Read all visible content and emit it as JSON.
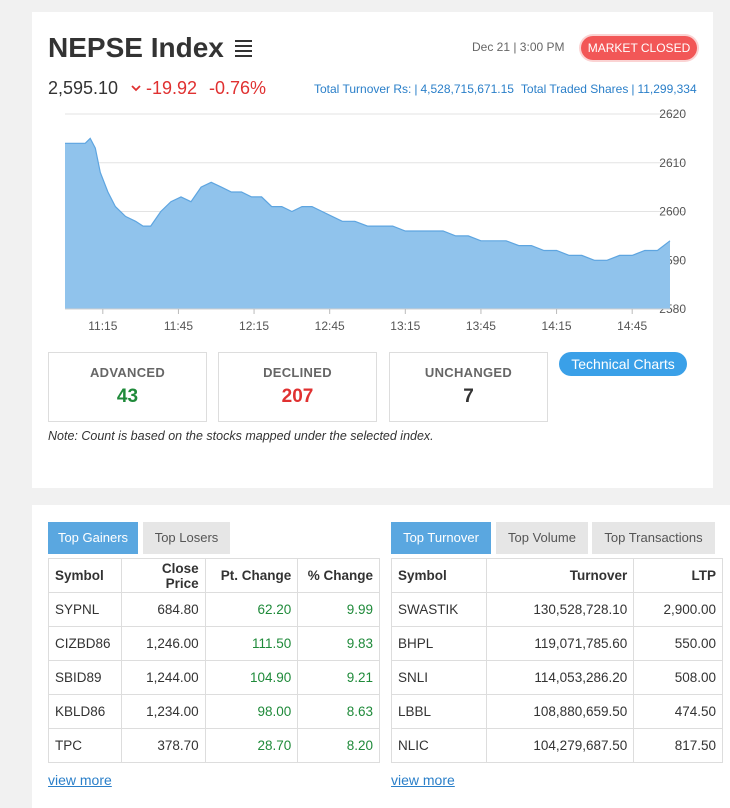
{
  "header": {
    "title": "NEPSE Index",
    "datetime": "Dec 21 | 3:00 PM",
    "market_status": "MARKET CLOSED"
  },
  "index": {
    "value": "2,595.10",
    "point_change": "-19.92",
    "percent_change": "-0.76%"
  },
  "turnover": {
    "turnover_label": "Total Turnover Rs:",
    "turnover_value": "4,528,715,671.15",
    "shares_label": "Total Traded Shares",
    "shares_value": "11,299,334"
  },
  "chart_data": {
    "type": "area",
    "x_ticks": [
      "11:15",
      "11:45",
      "12:15",
      "12:45",
      "13:15",
      "13:45",
      "14:15",
      "14:45"
    ],
    "y_ticks": [
      2620,
      2610,
      2600,
      2590,
      2580
    ],
    "ylim": [
      2580,
      2620
    ],
    "color": "#90c3ec",
    "line_color": "#5ea5e0",
    "series": [
      {
        "x": [
          "11:00",
          "11:04",
          "11:08",
          "11:10",
          "11:12",
          "11:14",
          "11:17",
          "11:20",
          "11:24",
          "11:28",
          "11:31",
          "11:34",
          "11:38",
          "11:42",
          "11:46",
          "11:50",
          "11:54",
          "11:58",
          "12:02",
          "12:06",
          "12:10",
          "12:14",
          "12:18",
          "12:22",
          "12:26",
          "12:30",
          "12:34",
          "12:38",
          "12:42",
          "12:46",
          "12:50",
          "12:55",
          "13:00",
          "13:05",
          "13:10",
          "13:15",
          "13:20",
          "13:25",
          "13:30",
          "13:35",
          "13:40",
          "13:45",
          "13:50",
          "13:55",
          "14:00",
          "14:05",
          "14:10",
          "14:15",
          "14:20",
          "14:25",
          "14:30",
          "14:35",
          "14:40",
          "14:45",
          "14:50",
          "14:55",
          "15:00"
        ],
        "values": [
          2614,
          2614,
          2614,
          2615,
          2613,
          2608,
          2604,
          2601,
          2599,
          2598,
          2597,
          2597,
          2600,
          2602,
          2603,
          2602,
          2605,
          2606,
          2605,
          2604,
          2604,
          2603,
          2603,
          2601,
          2601,
          2600,
          2601,
          2601,
          2600,
          2599,
          2598,
          2598,
          2597,
          2597,
          2597,
          2596,
          2596,
          2596,
          2596,
          2595,
          2595,
          2594,
          2594,
          2594,
          2593,
          2593,
          2592,
          2592,
          2591,
          2591,
          2590,
          2590,
          2591,
          2591,
          2592,
          2592,
          2594
        ]
      }
    ]
  },
  "stats": {
    "advanced_label": "ADVANCED",
    "advanced_value": "43",
    "declined_label": "DECLINED",
    "declined_value": "207",
    "unchanged_label": "UNCHANGED",
    "unchanged_value": "7"
  },
  "colors": {
    "advanced": "#1f8a3a",
    "declined": "#e03131",
    "unchanged": "#333333"
  },
  "technical_charts_label": "Technical Charts",
  "note": "Note: Count is based on the stocks mapped under the selected index.",
  "gainers_panel": {
    "tabs": [
      "Top Gainers",
      "Top Losers"
    ],
    "headers": [
      "Symbol",
      "Close Price",
      "Pt. Change",
      "% Change"
    ],
    "rows": [
      [
        "SYPNL",
        "684.80",
        "62.20",
        "9.99"
      ],
      [
        "CIZBD86",
        "1,246.00",
        "111.50",
        "9.83"
      ],
      [
        "SBID89",
        "1,244.00",
        "104.90",
        "9.21"
      ],
      [
        "KBLD86",
        "1,234.00",
        "98.00",
        "8.63"
      ],
      [
        "TPC",
        "378.70",
        "28.70",
        "8.20"
      ]
    ],
    "view_more": "view more"
  },
  "turnover_panel": {
    "tabs": [
      "Top Turnover",
      "Top Volume",
      "Top Transactions"
    ],
    "headers": [
      "Symbol",
      "Turnover",
      "LTP"
    ],
    "rows": [
      [
        "SWASTIK",
        "130,528,728.10",
        "2,900.00"
      ],
      [
        "BHPL",
        "119,071,785.60",
        "550.00"
      ],
      [
        "SNLI",
        "114,053,286.20",
        "508.00"
      ],
      [
        "LBBL",
        "108,880,659.50",
        "474.50"
      ],
      [
        "NLIC",
        "104,279,687.50",
        "817.50"
      ]
    ],
    "view_more": "view more"
  }
}
